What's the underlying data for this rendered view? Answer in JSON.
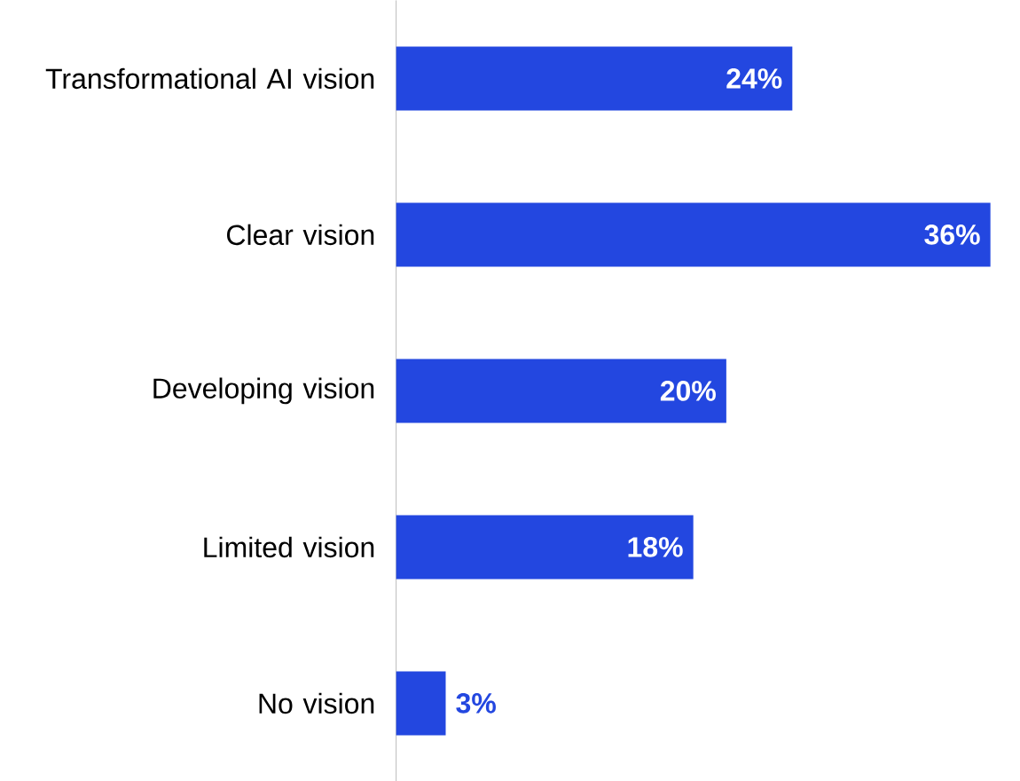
{
  "chart_data": {
    "type": "bar",
    "orientation": "horizontal",
    "categories": [
      "Transformational AI vision",
      "Clear vision",
      "Developing vision",
      "Limited vision",
      "No vision"
    ],
    "values": [
      24,
      36,
      20,
      18,
      3
    ],
    "value_labels": [
      "24%",
      "36%",
      "20%",
      "18%",
      "3%"
    ],
    "color": "#2347e0"
  }
}
